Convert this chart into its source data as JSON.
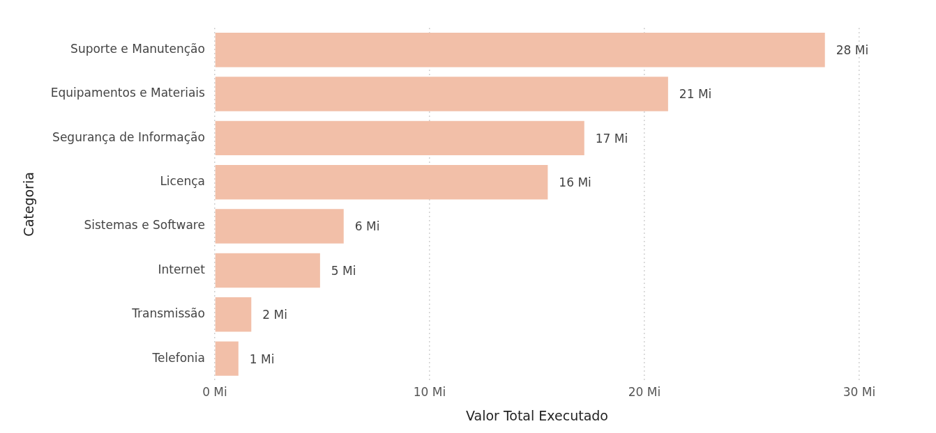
{
  "chart_data": {
    "type": "bar",
    "orientation": "horizontal",
    "xlabel": "Valor Total Executado",
    "ylabel": "Categoria",
    "categories": [
      "Suporte e Manutenção",
      "Equipamentos e Materiais",
      "Segurança de Informação",
      "Licença",
      "Sistemas e Software",
      "Internet",
      "Transmissão",
      "Telefonia"
    ],
    "values": [
      28.4,
      21.1,
      17.2,
      15.5,
      6.0,
      4.9,
      1.7,
      1.1
    ],
    "value_labels": [
      "28 Mi",
      "21 Mi",
      "17 Mi",
      "16 Mi",
      "6 Mi",
      "5 Mi",
      "2 Mi",
      "1 Mi"
    ],
    "color": "#f2bfa8",
    "xlim": [
      0,
      30
    ],
    "xticks": [
      {
        "value": 0,
        "label": "0 Mi"
      },
      {
        "value": 10,
        "label": "10 Mi"
      },
      {
        "value": 20,
        "label": "20 Mi"
      },
      {
        "value": 30,
        "label": "30 Mi"
      }
    ],
    "grid": "x",
    "legend": false
  }
}
